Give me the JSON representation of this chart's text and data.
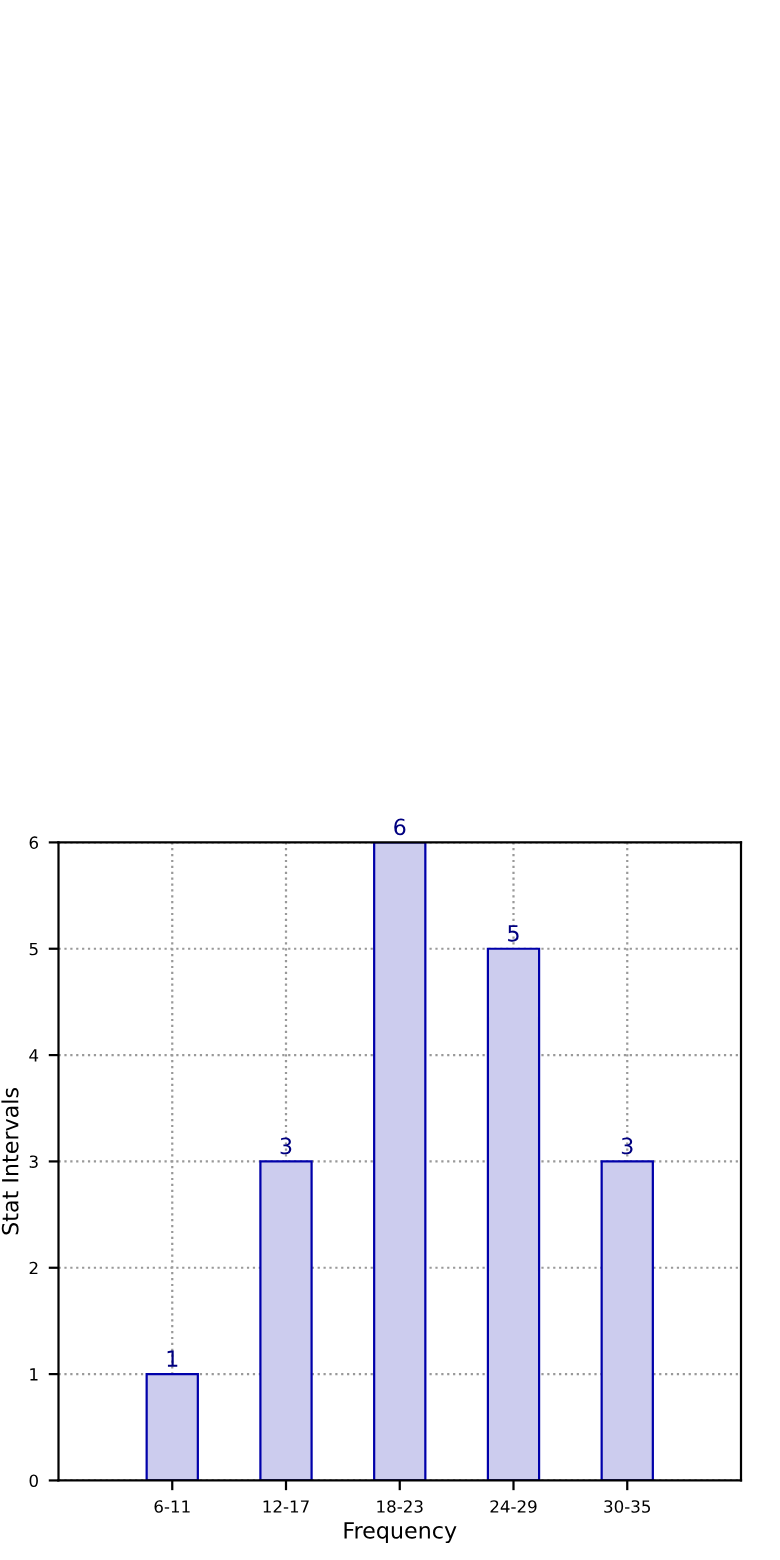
{
  "chart_data": {
    "type": "bar",
    "xlabel": "Frequency",
    "ylabel": "Stat Intervals",
    "categories": [
      "6-11",
      "12-17",
      "18-23",
      "24-29",
      "30-35"
    ],
    "values": [
      1,
      3,
      6,
      5,
      3
    ],
    "color": "#ccccee",
    "ylim": [
      0,
      6
    ],
    "yticks": [
      0,
      1,
      2,
      3,
      4,
      5,
      6
    ],
    "grid": true,
    "data_labels": true
  }
}
